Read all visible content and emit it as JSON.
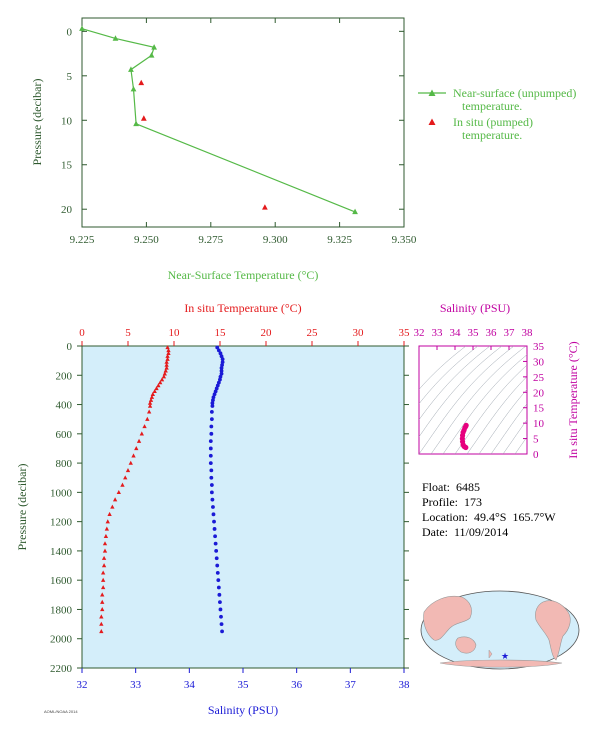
{
  "info": {
    "float": "Float:  6485",
    "profile": "Profile:  173",
    "location": "Location:  49.4°S  165.7°W",
    "date": "Date:  11/09/2014"
  },
  "credit": "AOML/NOAA 2014",
  "chart_data": [
    {
      "type": "line",
      "name": "near-surface",
      "xlabel": "Near-Surface Temperature (°C)",
      "ylabel": "Pressure (decibar)",
      "xlim": [
        9.225,
        9.35
      ],
      "ylim": [
        22,
        -1.5
      ],
      "x_ticks": [
        "9.225",
        "9.250",
        "9.275",
        "9.300",
        "9.325",
        "9.350"
      ],
      "y_ticks": [
        "0",
        "5",
        "10",
        "15",
        "20"
      ],
      "series": [
        {
          "name": "Near-surface (unpumped) temperature.",
          "color": "#55b947",
          "marker": "triangle",
          "x": [
            9.225,
            9.238,
            9.253,
            9.252,
            9.244,
            9.245,
            9.246,
            9.331
          ],
          "y": [
            -0.3,
            0.8,
            1.8,
            2.7,
            4.3,
            6.5,
            10.4,
            20.3
          ]
        },
        {
          "name": "In situ (pumped) temperature.",
          "color": "#e41a1c",
          "marker": "triangle",
          "x": [
            9.248,
            9.249,
            9.296
          ],
          "y": [
            5.8,
            9.8,
            19.8
          ]
        }
      ],
      "legend": "right"
    },
    {
      "type": "scatter",
      "name": "profile",
      "xlabel_top": "In situ Temperature (°C)",
      "xlabel_bottom": "Salinity (PSU)",
      "ylabel": "Pressure (decibar)",
      "temp_ticks": [
        "0",
        "5",
        "10",
        "15",
        "20",
        "25",
        "30",
        "35"
      ],
      "sal_ticks": [
        "32",
        "33",
        "34",
        "35",
        "36",
        "37",
        "38"
      ],
      "p_ticks": [
        "0",
        "200",
        "400",
        "600",
        "800",
        "1000",
        "1200",
        "1400",
        "1600",
        "1800",
        "2000",
        "2200"
      ],
      "temp_range": [
        0,
        35
      ],
      "sal_range": [
        32,
        38
      ],
      "p_range": [
        0,
        2200
      ],
      "temperature": {
        "color": "#e41a1c",
        "marker": "triangle",
        "pressure": [
          10,
          30,
          50,
          70,
          90,
          110,
          130,
          150,
          170,
          190,
          210,
          230,
          250,
          270,
          290,
          310,
          330,
          350,
          370,
          390,
          410,
          450,
          500,
          550,
          600,
          650,
          700,
          750,
          800,
          850,
          900,
          950,
          1000,
          1050,
          1100,
          1150,
          1200,
          1250,
          1300,
          1350,
          1400,
          1450,
          1500,
          1550,
          1600,
          1650,
          1700,
          1750,
          1800,
          1850,
          1900,
          1950
        ],
        "values": [
          9.3,
          9.4,
          9.4,
          9.3,
          9.3,
          9.2,
          9.2,
          9.2,
          9.1,
          9.0,
          8.9,
          8.7,
          8.5,
          8.3,
          8.1,
          7.9,
          7.7,
          7.6,
          7.5,
          7.4,
          7.4,
          7.3,
          7.1,
          6.8,
          6.5,
          6.2,
          5.9,
          5.6,
          5.3,
          5.0,
          4.7,
          4.4,
          4.0,
          3.6,
          3.3,
          3.0,
          2.8,
          2.7,
          2.6,
          2.5,
          2.5,
          2.4,
          2.4,
          2.3,
          2.3,
          2.3,
          2.2,
          2.2,
          2.2,
          2.1,
          2.1,
          2.1
        ]
      },
      "salinity": {
        "color": "#1a1ad6",
        "marker": "dot",
        "pressure": [
          10,
          30,
          50,
          70,
          90,
          110,
          130,
          150,
          170,
          190,
          210,
          230,
          250,
          270,
          290,
          310,
          330,
          350,
          370,
          390,
          410,
          450,
          500,
          550,
          600,
          650,
          700,
          750,
          800,
          850,
          900,
          950,
          1000,
          1050,
          1100,
          1150,
          1200,
          1250,
          1300,
          1350,
          1400,
          1450,
          1500,
          1550,
          1600,
          1650,
          1700,
          1750,
          1800,
          1850,
          1900,
          1950
        ],
        "values": [
          34.52,
          34.55,
          34.58,
          34.6,
          34.62,
          34.62,
          34.61,
          34.6,
          34.6,
          34.6,
          34.58,
          34.57,
          34.55,
          34.53,
          34.51,
          34.49,
          34.47,
          34.45,
          34.44,
          34.43,
          34.43,
          34.42,
          34.42,
          34.41,
          34.41,
          34.4,
          34.4,
          34.4,
          34.4,
          34.41,
          34.41,
          34.42,
          34.42,
          34.43,
          34.44,
          34.45,
          34.46,
          34.47,
          34.48,
          34.49,
          34.5,
          34.51,
          34.52,
          34.53,
          34.54,
          34.55,
          34.56,
          34.57,
          34.58,
          34.59,
          34.6,
          34.61
        ]
      }
    },
    {
      "type": "scatter",
      "name": "ts-diagram",
      "xlabel": "Salinity (PSU)",
      "ylabel": "In situ Temperature (°C)",
      "x_ticks": [
        "32",
        "33",
        "34",
        "35",
        "36",
        "37",
        "38"
      ],
      "y_ticks": [
        "0",
        "5",
        "10",
        "15",
        "20",
        "25",
        "30",
        "35"
      ],
      "xlim": [
        32,
        38
      ],
      "ylim": [
        0,
        35
      ],
      "color": "#e6007e",
      "salinity": [
        34.62,
        34.6,
        34.55,
        34.5,
        34.45,
        34.42,
        34.41,
        34.42,
        34.45,
        34.5,
        34.55,
        34.6
      ],
      "temperature": [
        9.3,
        9.0,
        8.5,
        7.7,
        7.0,
        6.0,
        5.0,
        4.0,
        3.0,
        2.5,
        2.3,
        2.1
      ]
    }
  ]
}
